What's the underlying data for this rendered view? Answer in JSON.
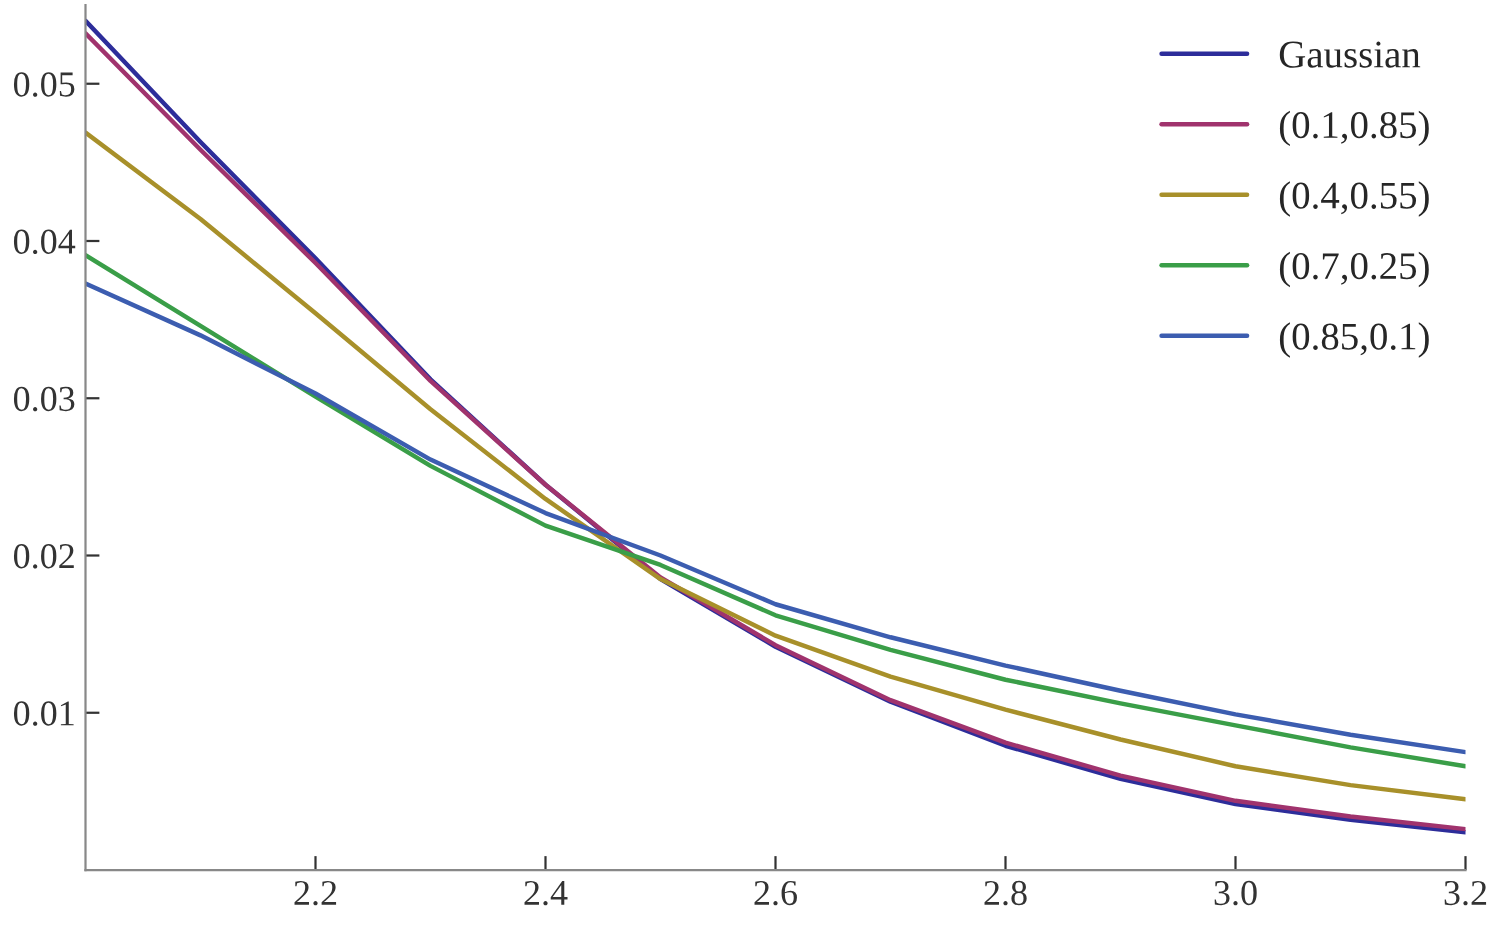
{
  "chart_data": {
    "type": "line",
    "x": [
      2.0,
      2.1,
      2.2,
      2.3,
      2.4,
      2.5,
      2.6,
      2.7,
      2.8,
      2.9,
      3.0,
      3.1,
      3.2
    ],
    "series": [
      {
        "name": "Gaussian",
        "color": "#2d2d9a",
        "values": [
          0.054,
          0.0463,
          0.0389,
          0.0312,
          0.0245,
          0.0185,
          0.0142,
          0.0107,
          0.0079,
          0.0058,
          0.0042,
          0.0032,
          0.0024
        ]
      },
      {
        "name": "(0.1,0.85)",
        "color": "#a0336d",
        "values": [
          0.0532,
          0.0458,
          0.0386,
          0.0311,
          0.0245,
          0.0186,
          0.0143,
          0.0108,
          0.0081,
          0.006,
          0.0044,
          0.0034,
          0.0026
        ]
      },
      {
        "name": "(0.4,0.55)",
        "color": "#a8902a",
        "values": [
          0.0469,
          0.0414,
          0.0354,
          0.0293,
          0.0236,
          0.0185,
          0.0149,
          0.0123,
          0.0102,
          0.0083,
          0.0066,
          0.0054,
          0.0045
        ]
      },
      {
        "name": "(0.7,0.25)",
        "color": "#3a9e48",
        "values": [
          0.0391,
          0.0346,
          0.0301,
          0.0257,
          0.0219,
          0.0194,
          0.0162,
          0.014,
          0.0121,
          0.0106,
          0.0092,
          0.0078,
          0.0066
        ]
      },
      {
        "name": "(0.85,0.1)",
        "color": "#3c5db0",
        "values": [
          0.0373,
          0.034,
          0.0303,
          0.0261,
          0.0227,
          0.02,
          0.0169,
          0.0148,
          0.013,
          0.0114,
          0.0099,
          0.0086,
          0.0075
        ]
      }
    ],
    "xlim": [
      2.0,
      3.2
    ],
    "ylim": [
      0,
      0.055
    ],
    "xticks": [
      2.2,
      2.4,
      2.6,
      2.8,
      {
        "value": 3,
        "label": "3.0"
      },
      3.2
    ],
    "yticks": [
      0.01,
      0.02,
      0.03,
      0.04,
      0.05
    ],
    "legend": "top right",
    "grid": false,
    "line_style": "solid",
    "marker": "none"
  }
}
